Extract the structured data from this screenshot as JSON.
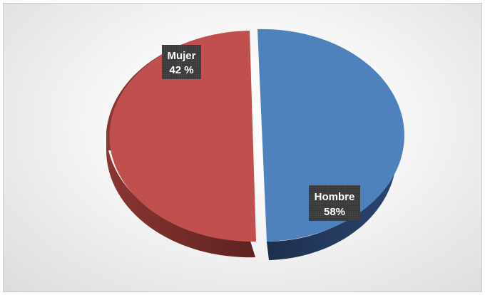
{
  "chart_data": {
    "type": "pie",
    "style": "3d",
    "exploded": true,
    "slices": [
      {
        "label": "Hombre",
        "value_label": "58%",
        "color": "#4f81bd",
        "side_color": "#23395d"
      },
      {
        "label": "Mujer",
        "value_label": "42 %",
        "color": "#c0504d",
        "side_color": "#6e2b29"
      }
    ],
    "label_box_color": "#404040",
    "legend": "none"
  }
}
